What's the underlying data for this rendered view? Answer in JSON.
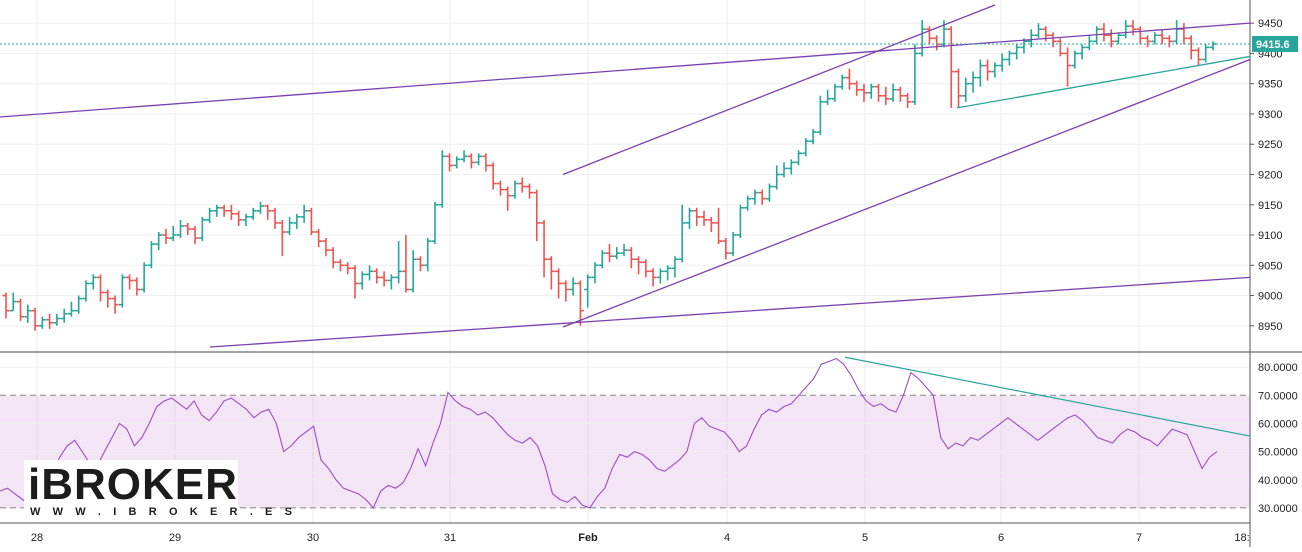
{
  "chart_data": [
    {
      "type": "ohlc",
      "price_label": "9415.6",
      "y_ticks": [
        8950,
        9000,
        9050,
        9100,
        9150,
        9200,
        9250,
        9300,
        9350,
        9400,
        9450
      ],
      "ylim": [
        8915,
        9480
      ],
      "last_price": 9415.6,
      "up_color": "#26a69a",
      "down_color": "#ef5350",
      "trendline_color": "#7b3fb0",
      "x_ticks": [
        "28",
        "29",
        "30",
        "31",
        "Feb",
        "4",
        "5",
        "6",
        "7",
        "18:"
      ],
      "bars": "1:9000:8975:9005:8962,2:8975:8990:9005:8975,3:8990:8965:8995:8958,4:8965:8975:8985:8955,5:8975:8950:8980:8942,6:8950:8960:8965:8945,7:8960:8955:8970:8945,8:8955:8962:8970:8950,9:8962:8970:8978:8955,10:8970:8975:8990:8965,11:8975:8995:9000:8970,12:8995:9020:9025:8990,13:9020:9030:9035:9010,14:9030:9005:9035:8990,15:9005:8995:9010:8980,16:8995:8985:9000:8970,17:8985:9030:9035:8980,18:9030:9025:9035:9010,19:9025:9010:9030:9000,20:9010:9050:9055:9005,21:9050:9085:9090:9045,22:9085:9100:9105:9075,23:9100:9095:9110:9085,24:9095:9100:9115:9090,25:9100:9115:9125:9095,26:9115:9110:9120:9100,27:9110:9095:9115:9085,28:9095:9125:9130:9090,29:9125:9140:9145:9120,30:9140:9145:9150:9130,31:9145:9140:9150:9130,32:9140:9135:9150:9125,33:9135:9125:9140:9115,34:9125:9130:9135:9115,35:9130:9140:9145:9125,36:9140:9148:9155:9135,37:9148:9140:9150:9125,38:9140:9120:9145:9110,39:9120:9105:9125:9065,40:9105:9120:9130:9100,41:9120:9130:9135:9110,42:9130:9140:9150:9120,43:9140:9105:9145:9100,44:9105:9090:9110:9080,45:9090:9075:9095:9065,46:9075:9055:9080:9045,47:9055:9050:9060:9040,48:9050:9045:9055:9035,49:9045:9020:9050:8995,50:9020:9035:9040:9010,51:9035:9040:9050:9025,52:9040:9030:9045:9020,53:9030:9025:9040:9015,54:9025:9030:9035:9010,55:9030:9040:9090:9020,56:9040:9010:9100:9005,57:9010:9060:9075:9005,58:9060:9050:9065:9040,59:9050:9090:9095:9040,60:9090:9150:9155:9085,61:9150:9230:9240:9145,62:9230:9215:9235:9205,63:9215:9225:9230:9210,64:9225:9230:9240:9220,65:9230:9220:9235:9210,66:9220:9230:9235:9215,67:9230:9215:9235:9205,68:9215:9185:9220:9175,69:9185:9175:9190:9165,70:9175:9165:9180:9140,71:9165:9185:9190:9160,72:9185:9180:9195:9170,73:9180:9170:9185:9160,74:9170:9120:9175:9090,75:9120:9060:9125:9030,76:9060:9040:9065:9010,77:9040:9020:9045:8995,78:9020:9010:9025:8990,79:9010:9020:9030:9000,80:9020:8975:9025:8950,81:9010:9030:9035:8980,82:9030:9050:9055:9020,83:9050:9070:9075:9045,84:9070:9065:9085:9055,85:9065:9070:9080:9060,86:9070:9075:9085:9065,87:9075:9060:9080:9045,88:9060:9055:9065:9035,89:9055:9040:9060:9030,90:9040:9030:9045:9015,91:9030:9040:9045:9020,92:9040:9045:9050:9025,93:9045:9060:9065:9030,94:9060:9120:9150:9055,95:9120:9140:9145:9110,96:9140:9130:9145:9115,97:9130:9125:9140:9115,98:9125:9120:9130:9105,99:9120:9090:9145:9085,100:9090:9070:9095:9060,101:9070:9100:9105:9065,102:9100:9145:9150:9095,103:9145:9160:9165:9140,104:9160:9170:9175:9150,105:9170:9160:9175:9150,106:9160:9180:9185:9155,107:9180:9200:9215:9175,108:9200:9210:9220:9195,109:9210:9220:9225:9200,110:9220:9235:9240:9215,111:9235:9255:9260:9230,112:9255:9270:9275:9250,113:9270:9320:9330:9265,114:9320:9325:9340:9315,115:9325:9345:9350:9320,116:9345:9360:9365:9340,117:9360:9350:9375:9340,118:9350:9340:9355:9330,119:9340:9335:9350:9320,120:9335:9345:9350:9325,121:9345:9330:9350:9320,122:9330:9325:9345:9315,123:9325:9340:9350:9320,124:9340:9330:9345:9320,125:9330:9320:9335:9310,126:9320:9400:9415:9315,127:9400:9440:9455:9395,128:9440:9425:9445:9415,129:9425:9415:9430:9405,130:9415:9440:9455:9410,131:9440:9370:9445:9310,132:9370:9330:9375:9310,133:9330:9350:9360:9320,134:9350:9360:9370:9335,135:9360:9380:9390:9345,136:9380:9370:9390:9355,137:9370:9380:9385:9360,138:9380:9390:9400:9370,139:9390:9400:9405:9380,140:9400:9410:9415:9390,141:9410:9420:9425:9400,142:9420:9430:9440:9410,143:9430:9440:9450:9425,144:9440:9430:9445:9420,145:9430:9420:9435:9410,146:9420:9400:9425:9395,147:9400:9380:9410:9345,148:9380:9400:9405:9375,149:9400:9410:9415:9390,150:9410:9420:9430:9405,151:9420:9440:9445:9415,152:9440:9430:9450:9420,153:9430:9420:9440:9410,154:9420:9430:9435:9415,155:9430:9445:9455:9425,156:9445:9440:9455:9430,157:9440:9425:9445:9415,158:9425:9420:9430:9410,159:9420:9430:9435:9415,160:9430:9425:9440:9415,161:9425:9420:9430:9410,162:9420:9440:9455:9415,163:9440:9425:9450:9415,164:9425:9405:9430:9390,165:9405:9390:9410:9380,166:9390:9410:9415:9385,167:9410:9415.6:9420:9405",
      "trendlines_price": [
        [
          [
            0,
            9295
          ],
          [
            1250,
            9450
          ]
        ],
        [
          [
            210,
            8915
          ],
          [
            1250,
            9030
          ]
        ],
        [
          [
            563,
            8948
          ],
          [
            1250,
            9390
          ]
        ],
        [
          [
            563,
            9200
          ],
          [
            995,
            9480
          ]
        ],
        [
          [
            957,
            9310
          ],
          [
            1250,
            9395
          ]
        ]
      ],
      "rsi": {
        "label_ticks": [
          "80.0000",
          "70.0000",
          "60.0000",
          "50.0000",
          "40.0000",
          "30.0000"
        ],
        "ylim": [
          25,
          85
        ],
        "upper": 70,
        "lower": 30,
        "values": [
          36,
          37,
          35,
          33,
          31,
          32,
          38,
          42,
          48,
          52,
          54,
          50,
          46,
          45,
          50,
          55,
          60,
          58,
          52,
          55,
          60,
          66,
          68,
          69,
          67,
          65,
          68,
          63,
          61,
          64,
          68,
          69,
          67,
          65,
          62,
          64,
          65,
          60,
          50,
          52,
          55,
          57,
          59,
          47,
          44,
          40,
          37,
          36,
          35,
          33,
          30,
          36,
          38,
          37,
          39,
          44,
          51,
          45,
          53,
          60,
          71,
          68,
          66,
          65,
          63,
          64,
          62,
          59,
          56,
          54,
          53,
          55,
          52,
          45,
          35,
          33,
          32,
          34,
          31,
          30,
          34,
          37,
          44,
          49,
          48,
          50,
          49,
          47,
          44,
          43,
          45,
          47,
          50,
          60,
          62,
          59,
          58,
          57,
          54,
          50,
          52,
          58,
          63,
          65,
          64,
          66,
          67,
          70,
          73,
          76,
          81,
          82,
          83,
          81,
          77,
          72,
          68,
          66,
          67,
          65,
          64,
          70,
          78,
          76,
          73,
          70,
          55,
          51,
          53,
          52,
          55,
          54,
          56,
          58,
          60,
          62,
          60,
          58,
          56,
          54,
          56,
          58,
          60,
          62,
          63,
          61,
          58,
          55,
          54,
          53,
          56,
          58,
          57,
          55,
          54,
          52,
          55,
          58,
          57,
          56,
          50,
          44,
          48,
          50
        ]
      },
      "rsi_trendlines": [
        [
          [
            845,
            83.5
          ],
          [
            1250,
            55.5
          ]
        ]
      ]
    }
  ],
  "logo": {
    "brand": "iBROKER",
    "url": "W W W . I B R O K E R . E S"
  }
}
